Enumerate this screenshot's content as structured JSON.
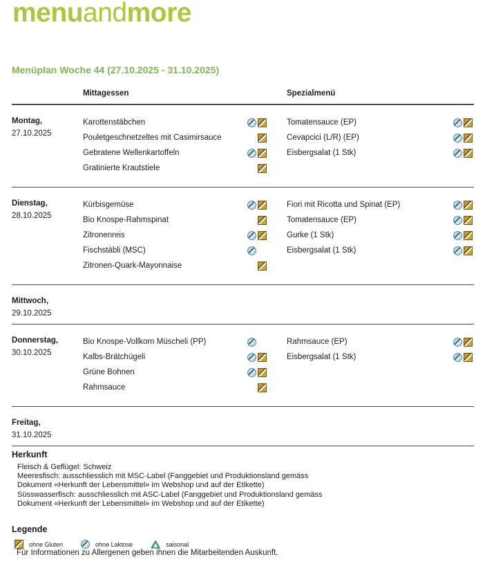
{
  "logo": {
    "part1": "menu",
    "part2": "and",
    "part3": "more"
  },
  "title": "Menüplan Woche 44 (27.10.2025 - 31.10.2025)",
  "colors": {
    "logo_green": "#a9c83d",
    "title_green": "#7db750",
    "gluten_gold": "#cda030",
    "laktose_blue": "#bcdcea",
    "saisonal_teal": "#2e8c6d"
  },
  "table": {
    "col_mittagessen": "Mittagessen",
    "col_spezialmenu": "Spezialmenü",
    "days": [
      {
        "name": "Montag,",
        "date": "27.10.2025",
        "mittagessen": [
          {
            "text": "Karottenstäbchen",
            "laktose": true,
            "gluten": true
          },
          {
            "text": "Pouletgeschnetzeltes mit Casimirsauce",
            "laktose": false,
            "gluten": true
          },
          {
            "text": "Gebratene Wellenkartoffeln",
            "laktose": true,
            "gluten": true
          },
          {
            "text": "Gratinierte Krautstiele",
            "laktose": false,
            "gluten": true
          }
        ],
        "spezialmenu": [
          {
            "text": "Tomatensauce (EP)",
            "laktose": true,
            "gluten": true
          },
          {
            "text": "Cevapcici (L/R) (EP)",
            "laktose": true,
            "gluten": true
          },
          {
            "text": "Eisbergsalat (1 Stk)",
            "laktose": true,
            "gluten": true
          }
        ]
      },
      {
        "name": "Dienstag,",
        "date": "28.10.2025",
        "mittagessen": [
          {
            "text": "Kürbisgemüse",
            "laktose": true,
            "gluten": true
          },
          {
            "text": "Bio Knospe-Rahmspinat",
            "laktose": false,
            "gluten": true
          },
          {
            "text": "Zitronenreis",
            "laktose": true,
            "gluten": true
          },
          {
            "text": "Fischstäbli (MSC)",
            "laktose": true,
            "gluten": false
          },
          {
            "text": "Zitronen-Quark-Mayonnaise",
            "laktose": false,
            "gluten": true
          }
        ],
        "spezialmenu": [
          {
            "text": "Fiori mit Ricotta und Spinat (EP)",
            "laktose": true,
            "gluten": true
          },
          {
            "text": "Tomatensauce (EP)",
            "laktose": true,
            "gluten": true
          },
          {
            "text": "Gurke (1 Stk)",
            "laktose": true,
            "gluten": true
          },
          {
            "text": "Eisbergsalat (1 Stk)",
            "laktose": true,
            "gluten": true
          }
        ]
      },
      {
        "name": "Mittwoch,",
        "date": "29.10.2025",
        "mittagessen": [],
        "spezialmenu": []
      },
      {
        "name": "Donnerstag,",
        "date": "30.10.2025",
        "mittagessen": [
          {
            "text": "Bio Knospe-Vollkorn Müscheli (PP)",
            "laktose": true,
            "gluten": false
          },
          {
            "text": "Kalbs-Brätchügeli",
            "laktose": true,
            "gluten": true
          },
          {
            "text": "Grüne Bohnen",
            "laktose": true,
            "gluten": true
          },
          {
            "text": "Rahmsauce",
            "laktose": false,
            "gluten": true
          }
        ],
        "spezialmenu": [
          {
            "text": "Rahmsauce (EP)",
            "laktose": true,
            "gluten": true
          },
          {
            "text": "Eisbergsalat (1 Stk)",
            "laktose": true,
            "gluten": true
          }
        ]
      },
      {
        "name": "Freitag,",
        "date": "31.10.2025",
        "mittagessen": [],
        "spezialmenu": []
      }
    ]
  },
  "herkunft": {
    "heading": "Herkunft",
    "lines": [
      "Fleisch & Geflügel: Schweiz",
      "Meeresfisch: ausschliesslich mit MSC-Label (Fanggebiet und Produktionsland gemäss",
      "Dokument «Herkunft der Lebensmittel» im Webshop und auf der Etikette)",
      "Süsswasserfisch: ausschliesslich mit ASC-Label (Fanggebiet und Produktionsland gemäss",
      "Dokument «Herkunft der Lebensmittel» im Webshop und auf der Etikette)"
    ]
  },
  "legende": {
    "heading": "Legende",
    "items": [
      {
        "icon": "gluten",
        "label": "ohne Gluten"
      },
      {
        "icon": "laktose",
        "label": "ohne Laktose"
      },
      {
        "icon": "saisonal",
        "label": "saisonal"
      }
    ]
  },
  "footer": "Für Informationen zu Allergenen geben ihnen die Mitarbeitenden Auskunft."
}
